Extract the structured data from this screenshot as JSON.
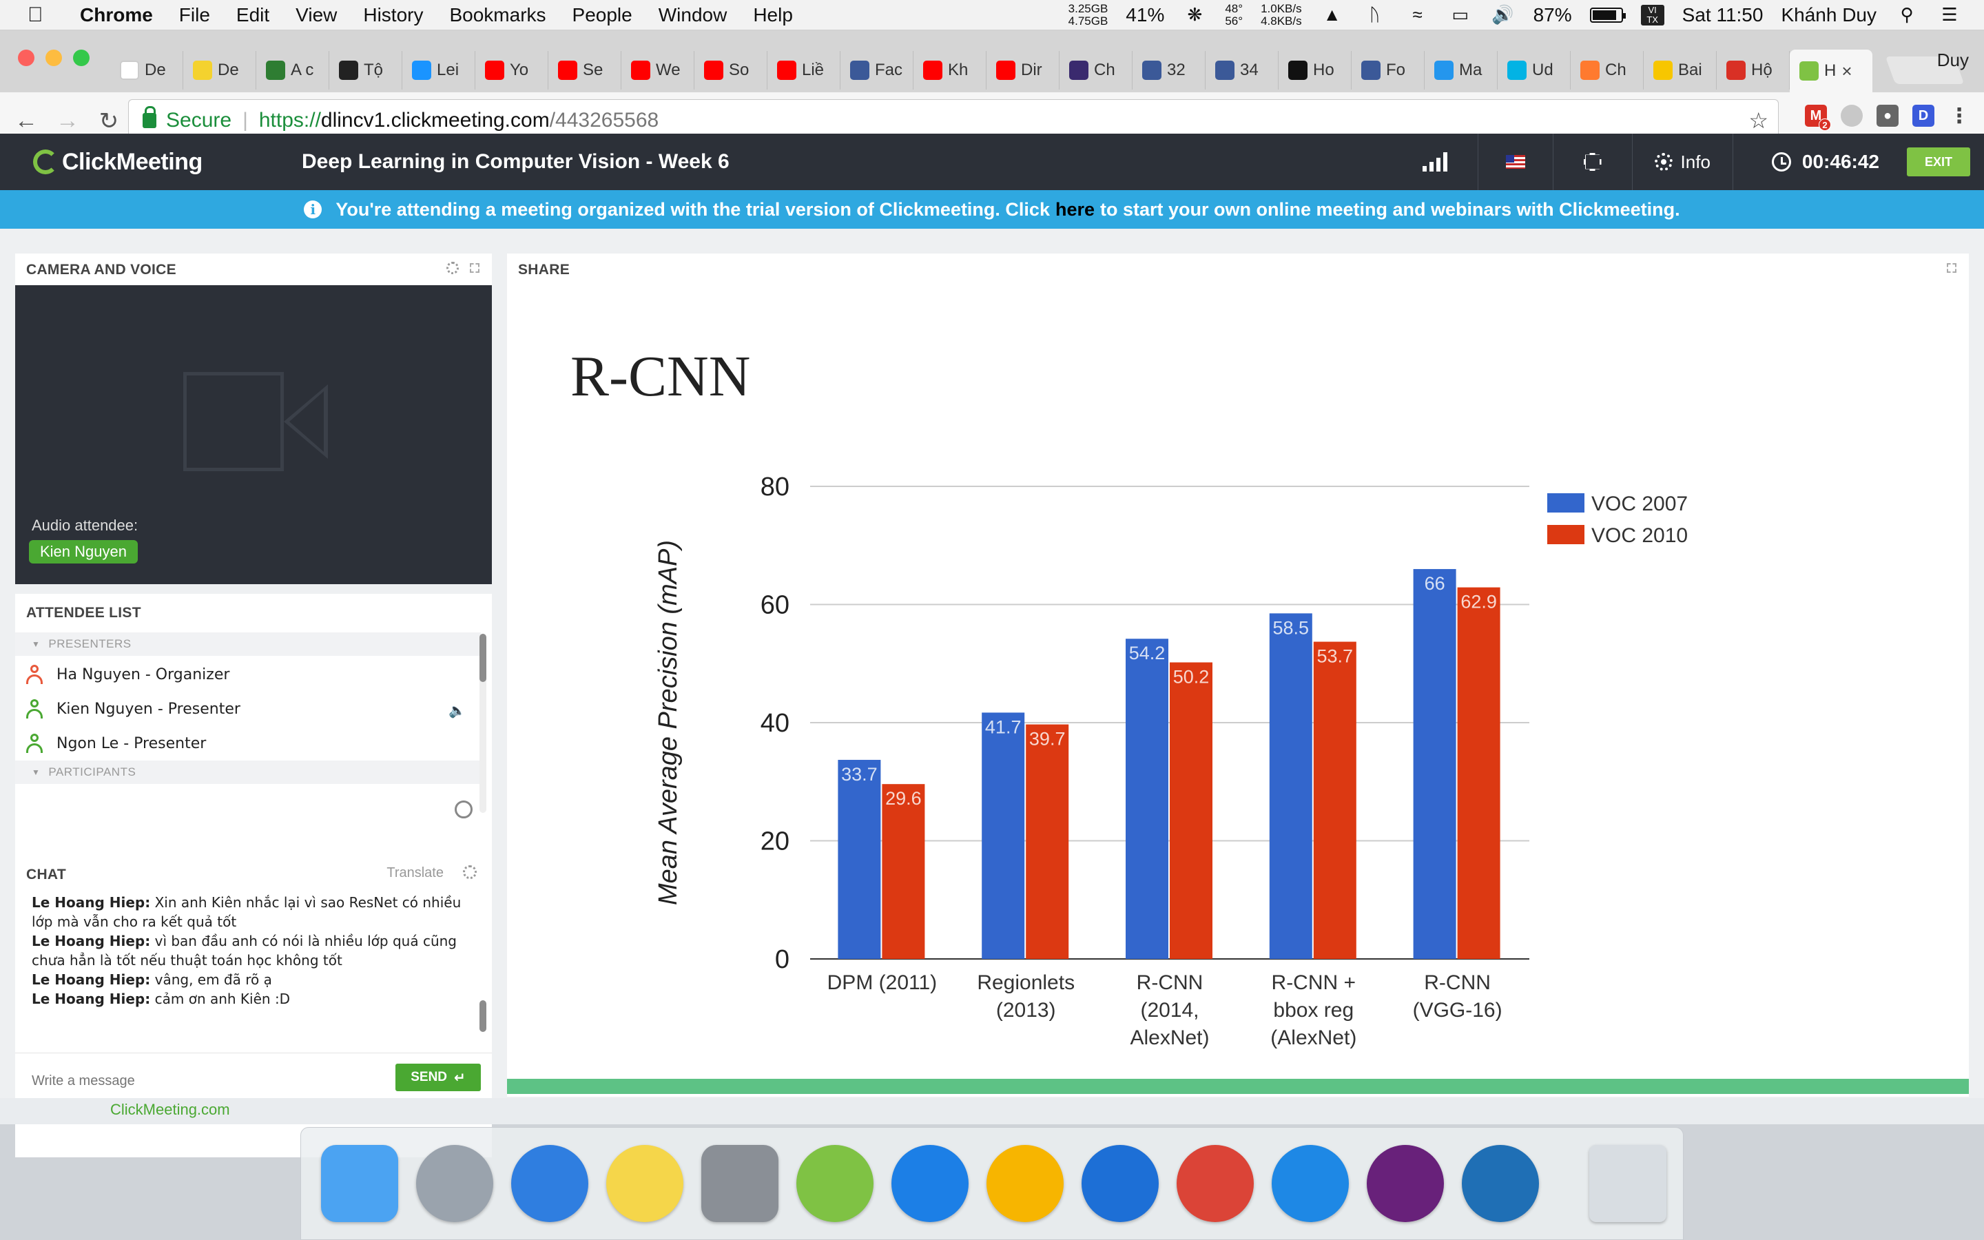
{
  "menubar": {
    "app_name": "Chrome",
    "menus": [
      "File",
      "Edit",
      "View",
      "History",
      "Bookmarks",
      "People",
      "Window",
      "Help"
    ],
    "mem_used": "3.25GB",
    "mem_free": "4.75GB",
    "cpu": "41%",
    "temp_top": "48°",
    "temp_bottom": "56°",
    "net_up": "1.0KB/s",
    "net_down": "4.8KB/s",
    "battery": "87%",
    "battery_level": 0.87,
    "input_badge_top": "VI",
    "input_badge_bottom": "TX",
    "clock": "Sat 11:50",
    "user": "Khánh Duy"
  },
  "browser": {
    "profile_name": "Duy",
    "tabs": [
      {
        "label": "De",
        "icon": "chrome-icon",
        "color": "#ffffff"
      },
      {
        "label": "De",
        "icon": "smiley-icon",
        "color": "#f4d22e"
      },
      {
        "label": "A c",
        "icon": "leaf-icon",
        "color": "#2e7d32"
      },
      {
        "label": "Tộ",
        "icon": "book-icon",
        "color": "#222222"
      },
      {
        "label": "Lei",
        "icon": "tiki-icon",
        "color": "#1a94ff"
      },
      {
        "label": "Yo",
        "icon": "youtube-icon",
        "color": "#ff0000"
      },
      {
        "label": "Se",
        "icon": "youtube-icon",
        "color": "#ff0000"
      },
      {
        "label": "We",
        "icon": "youtube-icon",
        "color": "#ff0000"
      },
      {
        "label": "So",
        "icon": "youtube-icon",
        "color": "#ff0000"
      },
      {
        "label": "Liề",
        "icon": "youtube-icon",
        "color": "#ff0000"
      },
      {
        "label": "Fac",
        "icon": "facebook-icon",
        "color": "#3b5998"
      },
      {
        "label": "Kh",
        "icon": "youtube-icon",
        "color": "#ff0000"
      },
      {
        "label": "Dir",
        "icon": "youtube-icon",
        "color": "#ff0000"
      },
      {
        "label": "Ch",
        "icon": "cube-icon",
        "color": "#3a2a6e"
      },
      {
        "label": "32",
        "icon": "facebook-icon",
        "color": "#3b5998"
      },
      {
        "label": "34",
        "icon": "facebook-icon",
        "color": "#3b5998"
      },
      {
        "label": "Ho",
        "icon": "medium-icon",
        "color": "#111111"
      },
      {
        "label": "Fo",
        "icon": "facebook-icon",
        "color": "#3b5998"
      },
      {
        "label": "Ma",
        "icon": "docker-icon",
        "color": "#2496ed"
      },
      {
        "label": "Ud",
        "icon": "udacity-icon",
        "color": "#02b3e4"
      },
      {
        "label": "Ch",
        "icon": "orange-icon",
        "color": "#ff7a2f"
      },
      {
        "label": "Bai",
        "icon": "b-icon",
        "color": "#f7c600"
      },
      {
        "label": "Hộ",
        "icon": "gmail-icon",
        "color": "#d93025"
      },
      {
        "label": "H",
        "icon": "clickmeeting-icon",
        "color": "#7fc244",
        "active": true
      }
    ],
    "url_secure_label": "Secure",
    "url_scheme": "https://",
    "url_host": "dlincv1.clickmeeting.com",
    "url_path": "/443265568",
    "gmail_badge": "2"
  },
  "clickmeeting": {
    "logo": "ClickMeeting",
    "meeting_title": "Deep Learning in Computer Vision - Week 6",
    "info_label": "Info",
    "timer": "00:46:42",
    "exit_label": "EXIT",
    "banner_prefix": "You're attending a meeting organized with the trial version of Clickmeeting. Click",
    "banner_link": "here",
    "banner_suffix": "to start your own online meeting and webinars with Clickmeeting.",
    "camera": {
      "title": "CAMERA AND VOICE",
      "audio_label": "Audio attendee:",
      "attendee": "Kien Nguyen"
    },
    "attendees": {
      "title": "ATTENDEE LIST",
      "presenters_label": "PRESENTERS",
      "participants_label": "PARTICIPANTS",
      "presenters": [
        {
          "name": "Ha Nguyen - Organizer",
          "color": "#e8593c"
        },
        {
          "name": "Kien Nguyen  - Presenter",
          "color": "#4aa832",
          "speaking": true
        },
        {
          "name": "Ngon Le  - Presenter",
          "color": "#4aa832"
        }
      ]
    },
    "chat": {
      "title": "CHAT",
      "translate_label": "Translate",
      "messages": [
        {
          "author": "Le Hoang Hiep:",
          "text": "Xin anh Kiên nhắc lại vì sao ResNet có nhiều lớp mà vẫn cho ra kết quả tốt"
        },
        {
          "author": "Le Hoang Hiep:",
          "text": "vì ban đầu anh có nói là nhiều lớp quá cũng chưa hẳn là tốt nếu thuật toán học không tốt"
        },
        {
          "author": "Le Hoang Hiep:",
          "text": "vâng, em đã rõ ạ"
        },
        {
          "author": "Le Hoang Hiep:",
          "text": "cảm ơn anh Kiên :D"
        }
      ],
      "input_placeholder": "Write a message",
      "send_label": "SEND"
    },
    "footer_link": "ClickMeeting.com",
    "share": {
      "title": "SHARE",
      "slide_title": "R-CNN"
    }
  },
  "chart_data": {
    "type": "bar",
    "title": "",
    "ylabel": "Mean Average Precision (mAP)",
    "xlabel": "",
    "ylim": [
      0,
      80
    ],
    "yticks": [
      0,
      20,
      40,
      60,
      80
    ],
    "grid": true,
    "legend_position": "top-right",
    "categories": [
      [
        "DPM (2011)"
      ],
      [
        "Regionlets",
        "(2013)"
      ],
      [
        "R-CNN",
        "(2014,",
        "AlexNet)"
      ],
      [
        "R-CNN +",
        "bbox reg",
        "(AlexNet)"
      ],
      [
        "R-CNN",
        "(VGG-16)"
      ]
    ],
    "series": [
      {
        "name": "VOC 2007",
        "color": "#3366cc",
        "values": [
          33.7,
          41.7,
          54.2,
          58.5,
          66
        ],
        "labels": [
          "33.7",
          "41.7",
          "54.2",
          "58.5",
          "66"
        ]
      },
      {
        "name": "VOC 2010",
        "color": "#dc3912",
        "values": [
          29.6,
          39.7,
          50.2,
          53.7,
          62.9
        ],
        "labels": [
          "29.6",
          "39.7",
          "50.2",
          "53.7",
          "62.9"
        ]
      }
    ]
  },
  "dock": {
    "apps": [
      {
        "name": "finder-icon",
        "color": "#4ba3f2"
      },
      {
        "name": "launchpad-icon",
        "color": "#9aa3ad"
      },
      {
        "name": "itunes-icon",
        "color": "#2f7ee0"
      },
      {
        "name": "notes-icon",
        "color": "#f5d64a"
      },
      {
        "name": "system-preferences-icon",
        "color": "#8a8f96"
      },
      {
        "name": "android-studio-icon",
        "color": "#7fc244"
      },
      {
        "name": "xcode-icon",
        "color": "#1c7fe6"
      },
      {
        "name": "sketch-icon",
        "color": "#f7b500"
      },
      {
        "name": "vmware-icon",
        "color": "#1d6fd6"
      },
      {
        "name": "chrome-icon",
        "color": "#db4437"
      },
      {
        "name": "pinpoint-icon",
        "color": "#1e88e5"
      },
      {
        "name": "visual-studio-icon",
        "color": "#68217a"
      },
      {
        "name": "vscode-icon",
        "color": "#1f6fb5"
      },
      {
        "name": "trash-icon",
        "color": "#d8dde2"
      }
    ]
  }
}
